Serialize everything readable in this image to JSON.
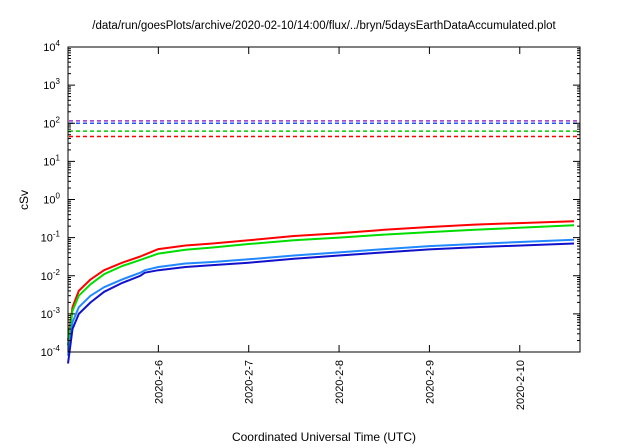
{
  "chart_data": {
    "type": "line",
    "title": "/data/run/goesPlots/archive/2020-02-10/14:00/flux/../bryn/5daysEarthDataAccumulated.plot",
    "xlabel": "Coordinated Universal Time (UTC)",
    "ylabel": "cSv",
    "y_scale": "log",
    "ylim": [
      0.0001,
      10000
    ],
    "y_tick_base": "10",
    "y_tick_exponents": [
      "-4",
      "-3",
      "-2",
      "-1",
      "0",
      "1",
      "2",
      "3",
      "4"
    ],
    "x_range_days": [
      "2020-2-5 00:00",
      "2020-2-10 16:00"
    ],
    "x_ticks": [
      "2020-2-6",
      "2020-2-7",
      "2020-2-8",
      "2020-2-9",
      "2020-2-10"
    ],
    "grid": false,
    "legend": "none",
    "thresholds": [
      {
        "color": "#9933cc",
        "value": 115
      },
      {
        "color": "#2255ff",
        "value": 100
      },
      {
        "color": "#00cc00",
        "value": 62
      },
      {
        "color": "#ff0000",
        "value": 45
      }
    ],
    "series": [
      {
        "color": "#ff0000",
        "x": [
          0.0,
          0.05,
          0.12,
          0.25,
          0.4,
          0.6,
          0.8,
          1.0,
          1.3,
          1.6,
          2.0,
          2.5,
          3.0,
          3.5,
          4.0,
          4.5,
          5.6
        ],
        "y": [
          0.0002,
          0.0015,
          0.004,
          0.008,
          0.014,
          0.022,
          0.032,
          0.05,
          0.062,
          0.07,
          0.085,
          0.11,
          0.13,
          0.16,
          0.19,
          0.22,
          0.27
        ]
      },
      {
        "color": "#00dd00",
        "x": [
          0.0,
          0.05,
          0.12,
          0.25,
          0.4,
          0.6,
          0.8,
          1.0,
          1.3,
          1.6,
          2.0,
          2.5,
          3.0,
          3.5,
          4.0,
          4.5,
          5.6
        ],
        "y": [
          0.00015,
          0.0012,
          0.003,
          0.006,
          0.011,
          0.018,
          0.026,
          0.038,
          0.048,
          0.055,
          0.068,
          0.085,
          0.1,
          0.12,
          0.14,
          0.16,
          0.21
        ]
      },
      {
        "color": "#2288ff",
        "x": [
          0.0,
          0.05,
          0.12,
          0.25,
          0.4,
          0.6,
          0.8,
          0.85,
          1.0,
          1.3,
          1.6,
          2.0,
          2.5,
          3.0,
          3.5,
          4.0,
          4.5,
          5.6
        ],
        "y": [
          8e-05,
          0.0006,
          0.0015,
          0.003,
          0.005,
          0.008,
          0.012,
          0.014,
          0.017,
          0.021,
          0.023,
          0.027,
          0.034,
          0.041,
          0.05,
          0.06,
          0.068,
          0.088
        ]
      },
      {
        "color": "#1111cc",
        "x": [
          0.0,
          0.05,
          0.12,
          0.25,
          0.4,
          0.6,
          0.8,
          0.85,
          1.0,
          1.3,
          1.6,
          2.0,
          2.5,
          3.0,
          3.5,
          4.0,
          4.5,
          5.6
        ],
        "y": [
          5e-05,
          0.0004,
          0.001,
          0.002,
          0.0038,
          0.0065,
          0.01,
          0.012,
          0.014,
          0.017,
          0.019,
          0.022,
          0.028,
          0.034,
          0.041,
          0.049,
          0.056,
          0.07
        ]
      }
    ]
  }
}
